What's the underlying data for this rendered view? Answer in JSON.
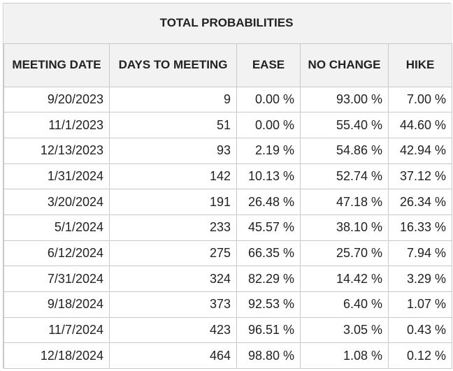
{
  "chart_data": {
    "type": "table",
    "title": "TOTAL PROBABILITIES",
    "columns": [
      "MEETING DATE",
      "DAYS TO MEETING",
      "EASE",
      "NO CHANGE",
      "HIKE"
    ],
    "rows": [
      [
        "9/20/2023",
        "9",
        "0.00 %",
        "93.00 %",
        "7.00 %"
      ],
      [
        "11/1/2023",
        "51",
        "0.00 %",
        "55.40 %",
        "44.60 %"
      ],
      [
        "12/13/2023",
        "93",
        "2.19 %",
        "54.86 %",
        "42.94 %"
      ],
      [
        "1/31/2024",
        "142",
        "10.13 %",
        "52.74 %",
        "37.12 %"
      ],
      [
        "3/20/2024",
        "191",
        "26.48 %",
        "47.18 %",
        "26.34 %"
      ],
      [
        "5/1/2024",
        "233",
        "45.57 %",
        "38.10 %",
        "16.33 %"
      ],
      [
        "6/12/2024",
        "275",
        "66.35 %",
        "25.70 %",
        "7.94 %"
      ],
      [
        "7/31/2024",
        "324",
        "82.29 %",
        "14.42 %",
        "3.29 %"
      ],
      [
        "9/18/2024",
        "373",
        "92.53 %",
        "6.40 %",
        "1.07 %"
      ],
      [
        "11/7/2024",
        "423",
        "96.51 %",
        "3.05 %",
        "0.43 %"
      ],
      [
        "12/18/2024",
        "464",
        "98.80 %",
        "1.08 %",
        "0.12 %"
      ]
    ]
  }
}
